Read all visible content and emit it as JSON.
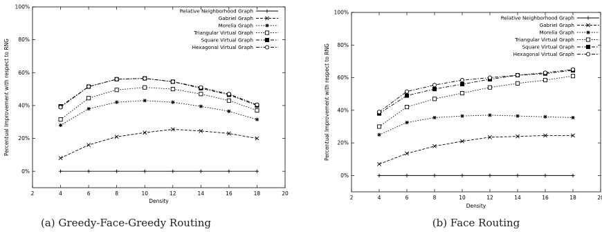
{
  "chart_data": [
    {
      "type": "line",
      "caption": "(a) Greedy-Face-Greedy Routing",
      "xlabel": "Density",
      "ylabel": "Percentual Improvement with respect to RNG",
      "xlim": [
        2,
        20
      ],
      "ylim": [
        -10,
        100
      ],
      "x_ticks": [
        2,
        4,
        6,
        8,
        10,
        12,
        14,
        16,
        18,
        20
      ],
      "y_ticks": [
        0,
        20,
        40,
        60,
        80,
        100
      ],
      "y_tick_suffix": "%",
      "grid": false,
      "legend_position": "top-left",
      "x": [
        4,
        6,
        8,
        10,
        12,
        14,
        16,
        18
      ],
      "series": [
        {
          "name": "Relative Neighborhood Graph",
          "marker": "plus",
          "dash": "solid",
          "values": [
            0,
            0,
            0,
            0,
            0,
            0,
            0,
            0
          ]
        },
        {
          "name": "Gabriel Graph",
          "marker": "x",
          "dash": "dashed",
          "values": [
            8,
            16,
            21,
            23.5,
            25.5,
            24.5,
            23,
            20
          ]
        },
        {
          "name": "Morelia Graph",
          "marker": "star",
          "dash": "dotted",
          "values": [
            28,
            38,
            42,
            43,
            42,
            39.5,
            36.5,
            31.5
          ]
        },
        {
          "name": "Triangular Virtual Graph",
          "marker": "square-open",
          "dash": "dotted",
          "values": [
            31.5,
            44.5,
            49.5,
            51,
            50,
            47,
            43,
            37
          ]
        },
        {
          "name": "Square Virtual Graph",
          "marker": "square-filled",
          "dash": "dashdot",
          "values": [
            39.5,
            51.5,
            56,
            56.5,
            54.5,
            50.5,
            46.5,
            40
          ]
        },
        {
          "name": "Hexagonal Virtual Graph",
          "marker": "circle-open",
          "dash": "dashdot",
          "values": [
            39,
            51.5,
            56,
            56.5,
            54.5,
            51,
            47,
            40.5
          ]
        }
      ]
    },
    {
      "type": "line",
      "caption": "(b) Face Routing",
      "xlabel": "Density",
      "ylabel": "Percentual Improvement with respect to RNG",
      "xlim": [
        2,
        20
      ],
      "ylim": [
        -10,
        100
      ],
      "x_ticks": [
        2,
        4,
        6,
        8,
        10,
        12,
        14,
        16,
        18,
        20
      ],
      "y_ticks": [
        0,
        20,
        40,
        60,
        80,
        100
      ],
      "y_tick_suffix": "%",
      "grid": false,
      "legend_position": "top-left",
      "x": [
        4,
        6,
        8,
        10,
        12,
        14,
        16,
        18
      ],
      "series": [
        {
          "name": "Relative Neighborhood Graph",
          "marker": "plus",
          "dash": "solid",
          "values": [
            0,
            0,
            0,
            0,
            0,
            0,
            0,
            0
          ]
        },
        {
          "name": "Gabriel Graph",
          "marker": "x",
          "dash": "dashed",
          "values": [
            7,
            13.5,
            18,
            21,
            23.5,
            24,
            24.5,
            24.5
          ]
        },
        {
          "name": "Morelia Graph",
          "marker": "star",
          "dash": "dotted",
          "values": [
            25,
            32.5,
            35.5,
            36.5,
            37,
            36.5,
            36,
            35.5
          ]
        },
        {
          "name": "Triangular Virtual Graph",
          "marker": "square-open",
          "dash": "dotted",
          "values": [
            30,
            42,
            47,
            50.5,
            54,
            56.5,
            58.5,
            61
          ]
        },
        {
          "name": "Square Virtual Graph",
          "marker": "square-filled",
          "dash": "dashdot",
          "values": [
            38,
            49,
            53,
            56,
            59,
            61.5,
            62.5,
            64.5
          ]
        },
        {
          "name": "Hexagonal Virtual Graph",
          "marker": "circle-open",
          "dash": "dashdot",
          "values": [
            39,
            51.5,
            55.5,
            58.5,
            60,
            61.5,
            63,
            65
          ]
        }
      ]
    }
  ]
}
